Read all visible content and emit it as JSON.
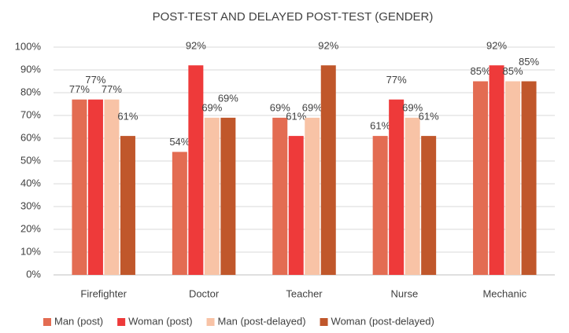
{
  "chart_data": {
    "type": "bar",
    "title": "POST-TEST AND DELAYED POST-TEST  (GENDER)",
    "categories": [
      "Firefighter",
      "Doctor",
      "Teacher",
      "Nurse",
      "Mechanic"
    ],
    "series": [
      {
        "name": "Man (post)",
        "color": "#e36c52",
        "values": [
          77,
          54,
          69,
          61,
          85
        ],
        "value_labels": [
          "77%",
          "54%",
          "69%",
          "61%",
          "85%"
        ]
      },
      {
        "name": "Woman (post)",
        "color": "#ee3a3a",
        "values": [
          77,
          92,
          61,
          77,
          92
        ],
        "value_labels": [
          "77%",
          "92%",
          "61%",
          "77%",
          "92%"
        ]
      },
      {
        "name": "Man (post-delayed)",
        "color": "#f8c3a6",
        "values": [
          77,
          69,
          69,
          69,
          85
        ],
        "value_labels": [
          "77%",
          "69%",
          "69%",
          "69%",
          "85%"
        ]
      },
      {
        "name": "Woman (post-delayed)",
        "color": "#c0572b",
        "values": [
          61,
          69,
          92,
          61,
          85
        ],
        "value_labels": [
          "61%",
          "69%",
          "92%",
          "61%",
          "85%"
        ]
      }
    ],
    "ylim": [
      0,
      100
    ],
    "yticks": [
      {
        "value": 0,
        "label": "0%"
      },
      {
        "value": 10,
        "label": "10%"
      },
      {
        "value": 20,
        "label": "20%"
      },
      {
        "value": 30,
        "label": "30%"
      },
      {
        "value": 40,
        "label": "40%"
      },
      {
        "value": 50,
        "label": "50%"
      },
      {
        "value": 60,
        "label": "60%"
      },
      {
        "value": 70,
        "label": "70%"
      },
      {
        "value": 80,
        "label": "80%"
      },
      {
        "value": 90,
        "label": "90%"
      },
      {
        "value": 100,
        "label": "100%"
      }
    ],
    "grid": true,
    "legend": "bottom"
  }
}
